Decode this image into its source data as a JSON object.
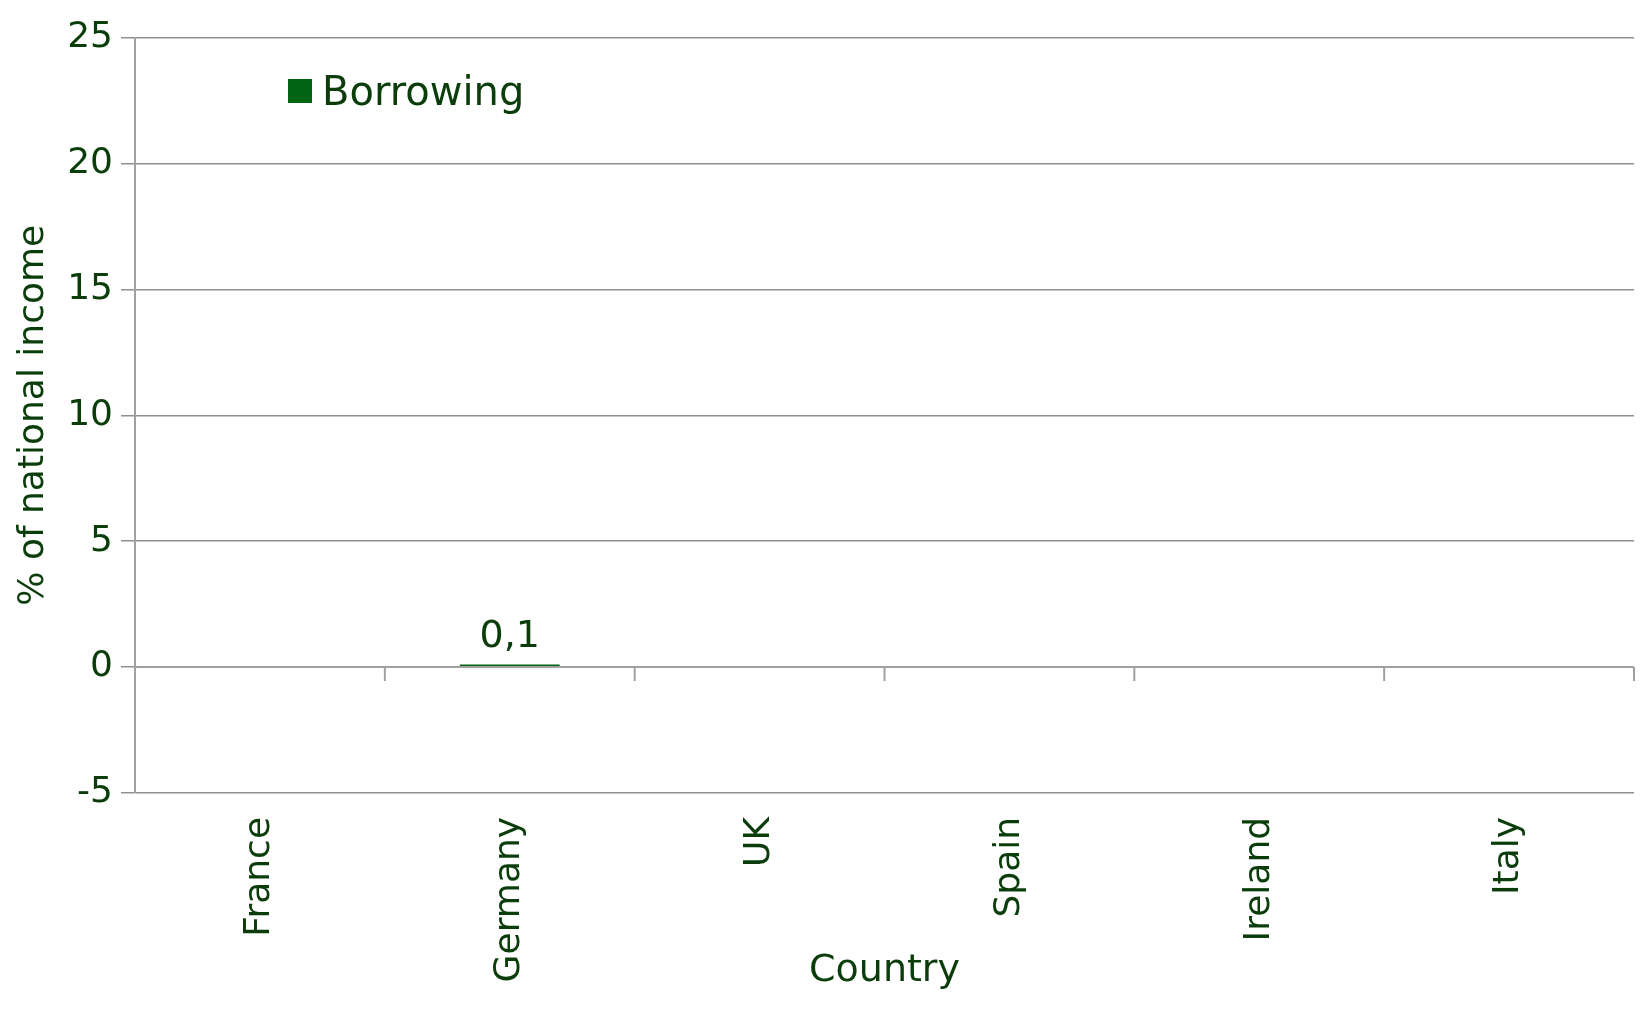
{
  "chart_data": {
    "type": "bar",
    "xlabel": "Country",
    "ylabel": "% of national income",
    "categories": [
      "France",
      "Germany",
      "UK",
      "Spain",
      "Ireland",
      "Italy"
    ],
    "series": [
      {
        "name": "Borrowing",
        "color": "#006414",
        "values": [
          null,
          0.1,
          null,
          null,
          null,
          null
        ],
        "value_labels": [
          null,
          "0,1",
          null,
          null,
          null,
          null
        ]
      }
    ],
    "ylim": [
      -5,
      25
    ],
    "yticks": [
      -5,
      0,
      5,
      10,
      15,
      20,
      25
    ],
    "grid": "y",
    "legend": "top left"
  }
}
